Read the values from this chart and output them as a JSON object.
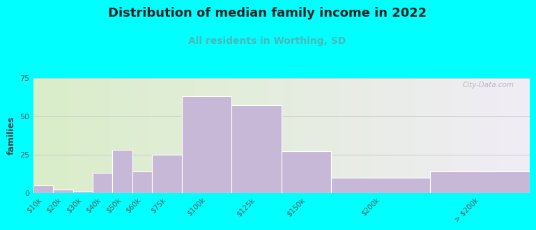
{
  "title": "Distribution of median family income in 2022",
  "subtitle": "All residents in Worthing, SD",
  "ylabel": "families",
  "background_color": "#00FFFF",
  "plot_bg_gradient_left": "#d9edc8",
  "plot_bg_gradient_right": "#f0ecf5",
  "bar_color": "#c8b8d8",
  "bar_edge_color": "#ffffff",
  "categories": [
    "$10k",
    "$20k",
    "$30k",
    "$40k",
    "$50k",
    "$60k",
    "$75k",
    "$100k",
    "$125k",
    "$150k",
    "$200k",
    "> $200k"
  ],
  "values": [
    5,
    2,
    1,
    13,
    28,
    14,
    25,
    63,
    57,
    27,
    10,
    14
  ],
  "bar_lefts": [
    0,
    10,
    20,
    30,
    40,
    50,
    60,
    75,
    100,
    125,
    150,
    200
  ],
  "bar_widths": [
    10,
    10,
    10,
    10,
    10,
    10,
    15,
    25,
    25,
    25,
    50,
    50
  ],
  "xlim": [
    0,
    250
  ],
  "ylim": [
    0,
    75
  ],
  "yticks": [
    0,
    25,
    50,
    75
  ],
  "title_fontsize": 13,
  "subtitle_fontsize": 10,
  "watermark": "City-Data.com"
}
